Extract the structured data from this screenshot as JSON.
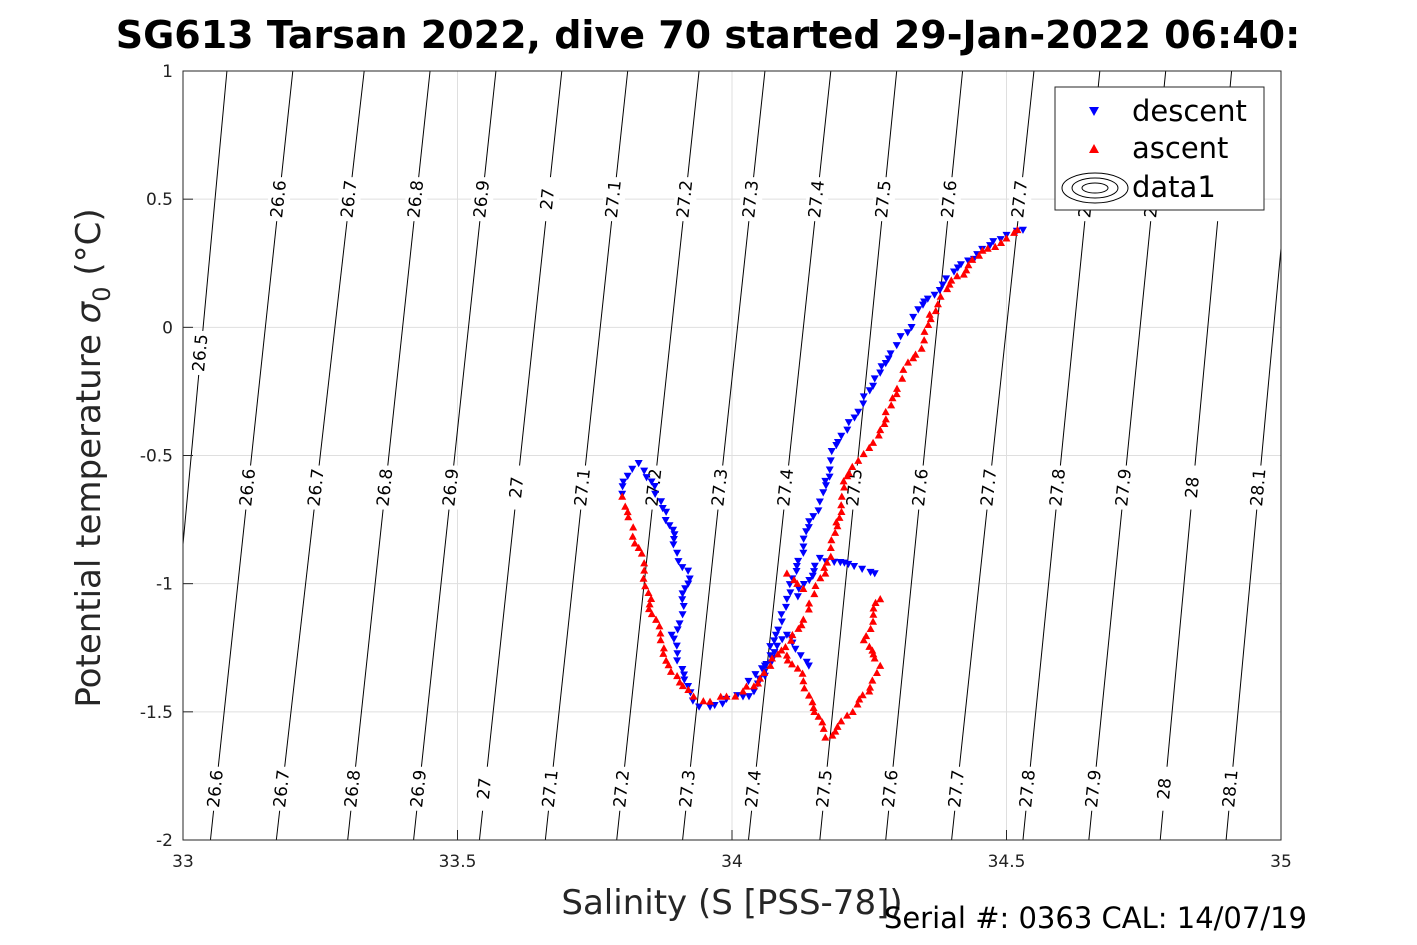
{
  "chart_data": {
    "type": "scatter",
    "title": "SG613 Tarsan 2022, dive 70 started 29-Jan-2022 06:40:",
    "xlabel": "Salinity (S [PSS-78])",
    "ylabel": "Potential temperature",
    "ylabel_symbol": "σ",
    "ylabel_subscript": "0",
    "ylabel_unit": "(°C)",
    "xlim": [
      33,
      35
    ],
    "ylim": [
      -2,
      1
    ],
    "x_ticks": [
      33,
      33.5,
      34,
      34.5,
      35
    ],
    "x_tick_labels": [
      "33",
      "33.5",
      "34",
      "34.5",
      "35"
    ],
    "y_ticks": [
      1,
      0.5,
      0,
      -0.5,
      -1,
      -1.5,
      -2
    ],
    "y_tick_labels": [
      "1",
      "0.5",
      "0",
      "-0.5",
      "-1",
      "-1.5",
      "-2"
    ],
    "grid": true,
    "legend_position": "top-right",
    "legend": [
      "descent",
      "ascent",
      "data1"
    ],
    "density_isopycnals": {
      "levels": [
        26.5,
        26.6,
        26.7,
        26.8,
        26.9,
        27,
        27.1,
        27.2,
        27.3,
        27.4,
        27.5,
        27.6,
        27.7,
        27.8,
        27.9,
        28,
        28.1
      ],
      "labels": [
        "26.5",
        "26.6",
        "26.7",
        "26.8",
        "26.9",
        "27",
        "27.1",
        "27.2",
        "27.3",
        "27.4",
        "27.5",
        "27.6",
        "27.7",
        "27.8",
        "27.9",
        "28",
        "28.1"
      ],
      "salinity_at_top": [
        33.08,
        33.2,
        33.33,
        33.45,
        33.57,
        33.69,
        33.81,
        33.94,
        34.06,
        34.18,
        34.3,
        34.42,
        34.55,
        34.67,
        34.79,
        34.91,
        35.03
      ],
      "salinity_at_bottom": [
        32.95,
        33.05,
        33.17,
        33.3,
        33.42,
        33.54,
        33.66,
        33.79,
        33.91,
        34.03,
        34.16,
        34.28,
        34.4,
        34.53,
        34.65,
        34.78,
        34.9
      ],
      "color": "#000000"
    },
    "series": [
      {
        "name": "descent",
        "marker": "triangle-down",
        "color": "#0000ff",
        "points": [
          [
            34.53,
            0.38
          ],
          [
            34.5,
            0.36
          ],
          [
            34.47,
            0.32
          ],
          [
            34.43,
            0.26
          ],
          [
            34.39,
            0.19
          ],
          [
            34.35,
            0.1
          ],
          [
            34.33,
            0.04
          ],
          [
            34.32,
            -0.02
          ],
          [
            34.3,
            -0.07
          ],
          [
            34.28,
            -0.14
          ],
          [
            34.26,
            -0.2
          ],
          [
            34.24,
            -0.27
          ],
          [
            34.23,
            -0.33
          ],
          [
            34.21,
            -0.4
          ],
          [
            34.19,
            -0.46
          ],
          [
            34.18,
            -0.52
          ],
          [
            34.17,
            -0.6
          ],
          [
            34.16,
            -0.68
          ],
          [
            34.14,
            -0.78
          ],
          [
            34.13,
            -0.88
          ],
          [
            34.11,
            -0.98
          ],
          [
            34.1,
            -1.06
          ],
          [
            34.09,
            -1.12
          ],
          [
            34.08,
            -1.2
          ],
          [
            34.07,
            -1.28
          ],
          [
            34.06,
            -1.36
          ],
          [
            34.04,
            -1.42
          ],
          [
            34.02,
            -1.44
          ],
          [
            33.99,
            -1.45
          ],
          [
            33.96,
            -1.48
          ],
          [
            33.94,
            -1.48
          ],
          [
            33.92,
            -1.4
          ],
          [
            33.9,
            -1.3
          ],
          [
            33.89,
            -1.2
          ],
          [
            33.91,
            -1.12
          ],
          [
            33.92,
            -0.95
          ],
          [
            33.9,
            -0.88
          ],
          [
            33.88,
            -0.72
          ],
          [
            33.86,
            -0.65
          ],
          [
            33.84,
            -0.56
          ],
          [
            33.83,
            -0.53
          ],
          [
            33.81,
            -0.58
          ],
          [
            33.8,
            -0.65
          ],
          [
            34.03,
            -1.38
          ],
          [
            34.06,
            -1.32
          ],
          [
            34.1,
            -1.2
          ],
          [
            34.14,
            -1.32
          ],
          [
            34.12,
            -1.05
          ],
          [
            34.16,
            -0.9
          ],
          [
            34.26,
            -0.96
          ]
        ]
      },
      {
        "name": "ascent",
        "marker": "triangle-up",
        "color": "#ff0000",
        "points": [
          [
            34.52,
            0.38
          ],
          [
            34.49,
            0.33
          ],
          [
            34.45,
            0.28
          ],
          [
            34.41,
            0.2
          ],
          [
            34.38,
            0.12
          ],
          [
            34.36,
            0.05
          ],
          [
            34.35,
            -0.05
          ],
          [
            34.33,
            -0.12
          ],
          [
            34.31,
            -0.2
          ],
          [
            34.3,
            -0.26
          ],
          [
            34.28,
            -0.33
          ],
          [
            34.27,
            -0.4
          ],
          [
            34.25,
            -0.47
          ],
          [
            34.23,
            -0.52
          ],
          [
            34.21,
            -0.58
          ],
          [
            34.2,
            -0.66
          ],
          [
            34.19,
            -0.76
          ],
          [
            34.18,
            -0.86
          ],
          [
            34.17,
            -0.96
          ],
          [
            34.15,
            -1.04
          ],
          [
            34.14,
            -1.1
          ],
          [
            34.13,
            -1.14
          ],
          [
            34.11,
            -1.2
          ],
          [
            34.09,
            -1.26
          ],
          [
            34.07,
            -1.32
          ],
          [
            34.04,
            -1.4
          ],
          [
            34.02,
            -1.42
          ],
          [
            33.99,
            -1.44
          ],
          [
            33.96,
            -1.46
          ],
          [
            33.93,
            -1.44
          ],
          [
            33.9,
            -1.36
          ],
          [
            33.88,
            -1.3
          ],
          [
            33.87,
            -1.22
          ],
          [
            33.85,
            -1.08
          ],
          [
            33.84,
            -0.92
          ],
          [
            33.83,
            -0.86
          ],
          [
            33.82,
            -0.78
          ],
          [
            33.81,
            -0.72
          ],
          [
            33.8,
            -0.66
          ],
          [
            34.1,
            -0.96
          ],
          [
            34.13,
            -1.02
          ],
          [
            34.1,
            -1.28
          ],
          [
            34.13,
            -1.38
          ],
          [
            34.15,
            -1.5
          ],
          [
            34.17,
            -1.6
          ],
          [
            34.22,
            -1.5
          ],
          [
            34.25,
            -1.42
          ],
          [
            34.27,
            -1.32
          ],
          [
            34.24,
            -1.22
          ],
          [
            34.27,
            -1.06
          ]
        ]
      },
      {
        "name": "data1",
        "marker": "contour",
        "color": "#000000",
        "points": []
      }
    ]
  },
  "footer": {
    "serial_text": "Serial #: 0363  CAL: 14/07/19"
  }
}
